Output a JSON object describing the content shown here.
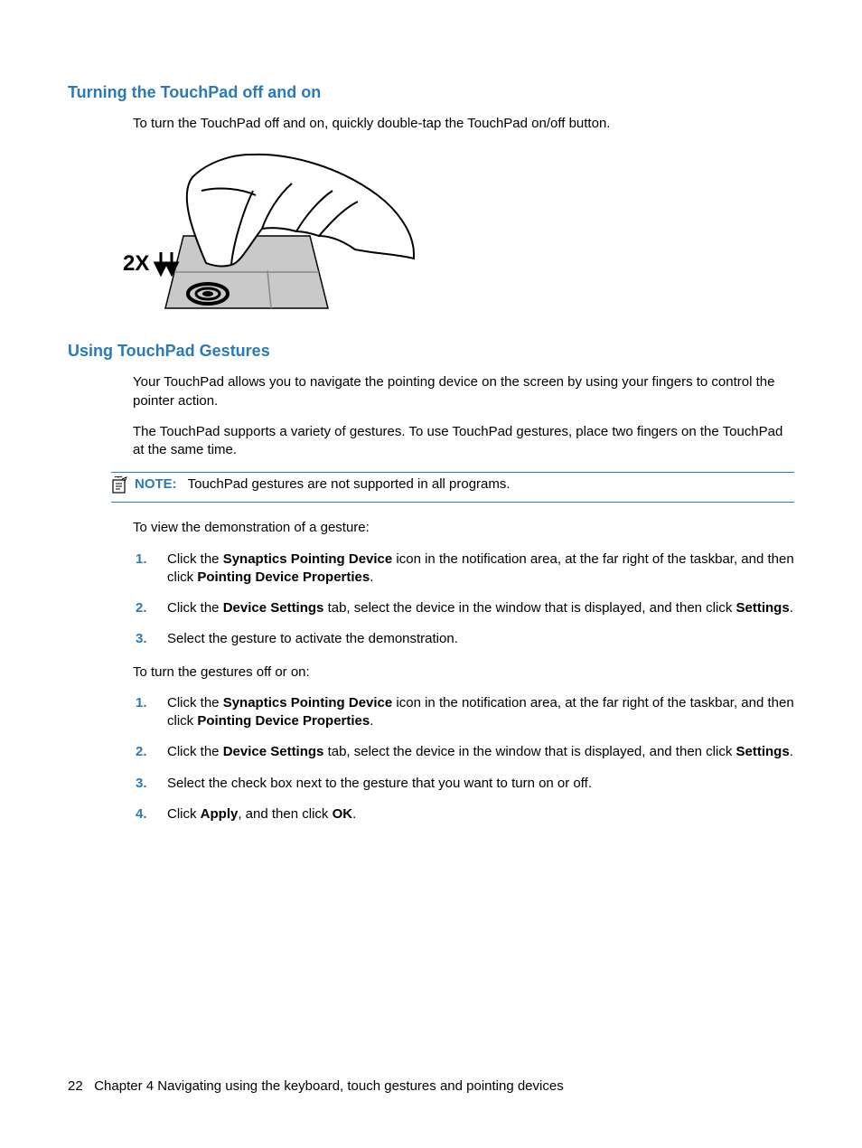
{
  "colors": {
    "heading": "#2a7ab9",
    "text": "#000000",
    "rule": "#2a7ab9",
    "background": "#ffffff"
  },
  "section1": {
    "title": "Turning the TouchPad off and on",
    "p1": "To turn the TouchPad off and on, quickly double-tap the TouchPad on/off button.",
    "illustration_label": "2X"
  },
  "section2": {
    "title": "Using TouchPad Gestures",
    "p1": "Your TouchPad allows you to navigate the pointing device on the screen by using your fingers to control the pointer action.",
    "p2": "The TouchPad supports a variety of gestures. To use TouchPad gestures, place two fingers on the TouchPad at the same time.",
    "note_label": "NOTE:",
    "note_text": "TouchPad gestures are not supported in all programs.",
    "p3": "To view the demonstration of a gesture:",
    "list1": [
      {
        "num": "1.",
        "pre": "Click the ",
        "b1": "Synaptics Pointing Device",
        "mid": " icon in the notification area, at the far right of the taskbar, and then click ",
        "b2": "Pointing Device Properties",
        "post": "."
      },
      {
        "num": "2.",
        "pre": "Click the ",
        "b1": "Device Settings",
        "mid": " tab, select the device in the window that is displayed, and then click ",
        "b2": "Settings",
        "post": "."
      },
      {
        "num": "3.",
        "text": "Select the gesture to activate the demonstration."
      }
    ],
    "p4": "To turn the gestures off or on:",
    "list2": [
      {
        "num": "1.",
        "pre": "Click the ",
        "b1": "Synaptics Pointing Device",
        "mid": " icon in the notification area, at the far right of the taskbar, and then click ",
        "b2": "Pointing Device Properties",
        "post": "."
      },
      {
        "num": "2.",
        "pre": "Click the ",
        "b1": "Device Settings",
        "mid": " tab, select the device in the window that is displayed, and then click ",
        "b2": "Settings",
        "post": "."
      },
      {
        "num": "3.",
        "text": "Select the check box next to the gesture that you want to turn on or off."
      },
      {
        "num": "4.",
        "pre": "Click ",
        "b1": "Apply",
        "mid": ", and then click ",
        "b2": "OK",
        "post": "."
      }
    ]
  },
  "footer": {
    "page_num": "22",
    "chapter": "Chapter 4   Navigating using the keyboard, touch gestures and pointing devices"
  }
}
